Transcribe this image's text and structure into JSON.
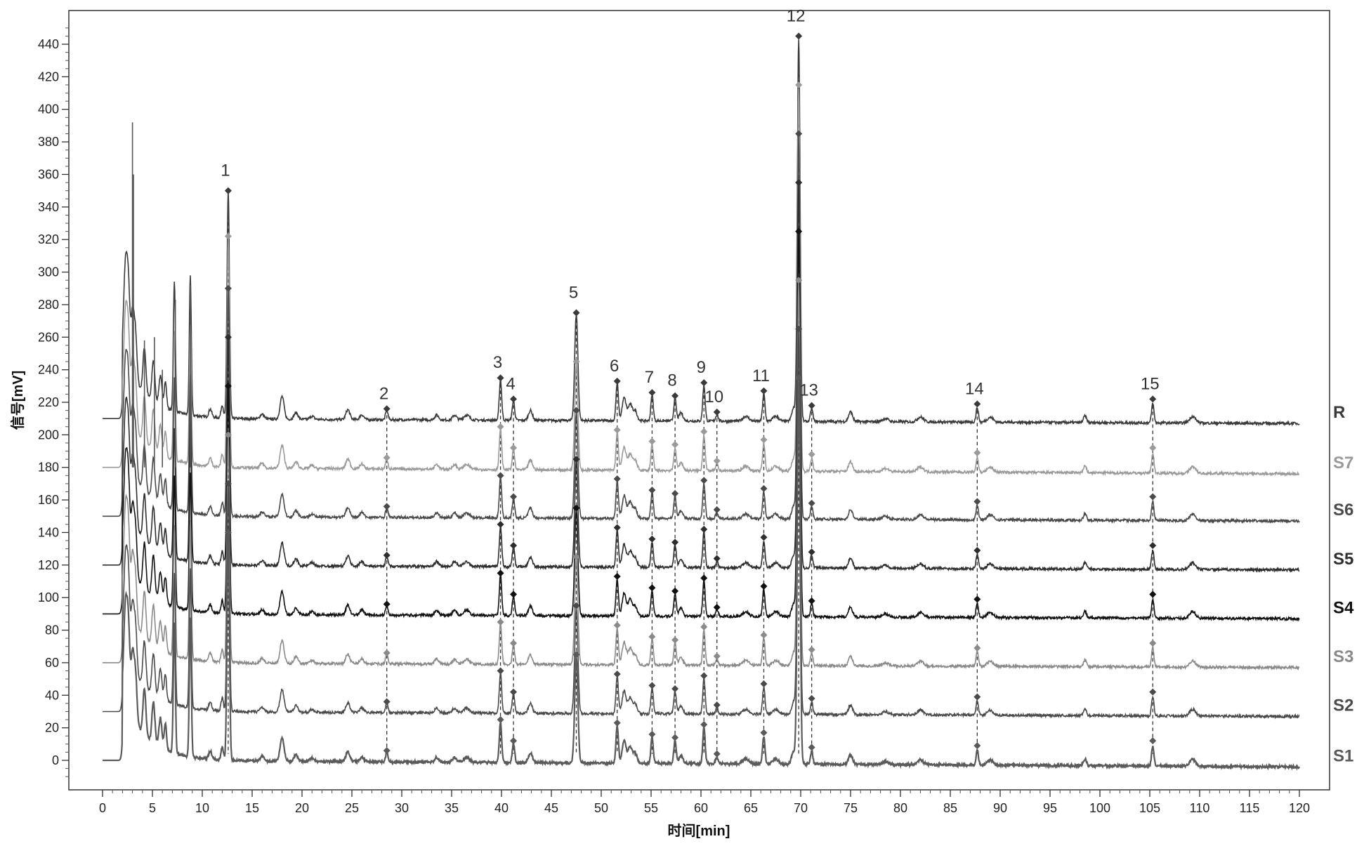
{
  "chart_data": {
    "type": "line",
    "title": "",
    "xlabel": "时间[min]",
    "ylabel": "信号[mV]",
    "xlim": [
      0,
      120
    ],
    "ylim": [
      -10,
      450
    ],
    "x_ticks": [
      0,
      5,
      10,
      15,
      20,
      25,
      30,
      35,
      40,
      45,
      50,
      55,
      60,
      65,
      70,
      75,
      80,
      85,
      90,
      95,
      100,
      105,
      110,
      115,
      120
    ],
    "y_ticks": [
      0,
      20,
      40,
      60,
      80,
      100,
      120,
      140,
      160,
      180,
      200,
      220,
      240,
      260,
      280,
      300,
      320,
      340,
      360,
      380,
      400,
      420,
      440
    ],
    "grid": false,
    "legend": "right-side labels at trace ends",
    "peaks": [
      {
        "label": "1",
        "x": 12.6
      },
      {
        "label": "2",
        "x": 28.5
      },
      {
        "label": "3",
        "x": 39.9
      },
      {
        "label": "4",
        "x": 41.2
      },
      {
        "label": "5",
        "x": 47.5
      },
      {
        "label": "6",
        "x": 51.6
      },
      {
        "label": "7",
        "x": 55.1
      },
      {
        "label": "8",
        "x": 57.4
      },
      {
        "label": "9",
        "x": 60.3
      },
      {
        "label": "10",
        "x": 61.6
      },
      {
        "label": "11",
        "x": 66.3
      },
      {
        "label": "12",
        "x": 69.8
      },
      {
        "label": "13",
        "x": 71.1
      },
      {
        "label": "14",
        "x": 87.7
      },
      {
        "label": "15",
        "x": 105.3
      }
    ],
    "series": [
      {
        "name": "R",
        "baseline": 210,
        "end": 207,
        "color": "#3a3a3a",
        "peak_heights": [
          140,
          6,
          25,
          12,
          65,
          23,
          16,
          14,
          22,
          4,
          17,
          235,
          8,
          9,
          12
        ]
      },
      {
        "name": "S7",
        "baseline": 180,
        "end": 176,
        "color": "#9a9a9a",
        "peak_heights": [
          142,
          6,
          25,
          12,
          65,
          23,
          16,
          14,
          22,
          4,
          17,
          235,
          8,
          9,
          12
        ]
      },
      {
        "name": "S6",
        "baseline": 150,
        "end": 147,
        "color": "#4a4a4a",
        "peak_heights": [
          140,
          6,
          25,
          12,
          65,
          23,
          16,
          14,
          22,
          4,
          17,
          235,
          8,
          9,
          12
        ]
      },
      {
        "name": "S5",
        "baseline": 120,
        "end": 117,
        "color": "#2e2e2e",
        "peak_heights": [
          140,
          6,
          25,
          12,
          65,
          23,
          16,
          14,
          22,
          4,
          17,
          235,
          8,
          9,
          12
        ]
      },
      {
        "name": "S4",
        "baseline": 90,
        "end": 87,
        "color": "#111111",
        "peak_heights": [
          140,
          6,
          25,
          12,
          65,
          23,
          16,
          14,
          22,
          4,
          17,
          235,
          8,
          9,
          12
        ]
      },
      {
        "name": "S3",
        "baseline": 60,
        "end": 57,
        "color": "#8a8a8a",
        "peak_heights": [
          140,
          6,
          25,
          12,
          65,
          23,
          16,
          14,
          22,
          4,
          17,
          235,
          8,
          9,
          12
        ]
      },
      {
        "name": "S2",
        "baseline": 30,
        "end": 27,
        "color": "#4a4a4a",
        "peak_heights": [
          140,
          6,
          25,
          12,
          65,
          23,
          16,
          14,
          22,
          4,
          17,
          235,
          8,
          9,
          12
        ]
      },
      {
        "name": "S1",
        "baseline": 0,
        "end": -4,
        "color": "#5a5a5a",
        "peak_heights": [
          140,
          6,
          25,
          12,
          65,
          23,
          16,
          14,
          22,
          4,
          17,
          235,
          8,
          9,
          12
        ]
      }
    ],
    "marked_peak_tops": [
      353,
      10,
      30,
      18,
      278,
      27,
      19,
      17,
      26,
      9,
      22,
      448,
      13,
      13,
      10
    ]
  }
}
